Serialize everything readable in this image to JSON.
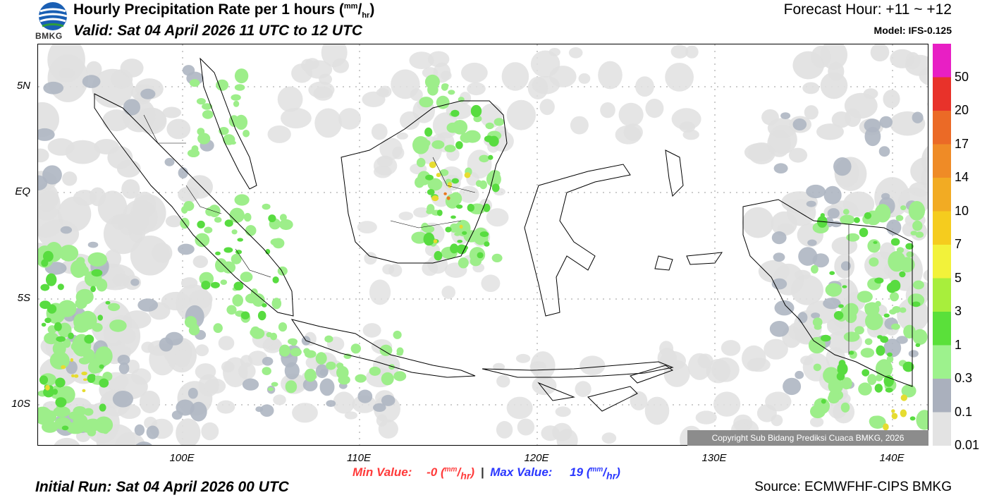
{
  "header": {
    "title": "Hourly Precipitation Rate per 1 hours (",
    "unit_top": "mm",
    "unit_bottom": "hr",
    "title_end": ")",
    "valid": "Valid: Sat 04 April 2026 11 UTC to 12 UTC",
    "forecast_hour": "Forecast Hour: +11 ~ +12",
    "model": "Model: IFS-0.125",
    "logo_text": "BMKG"
  },
  "map": {
    "lat_labels": [
      "5N",
      "EQ",
      "5S",
      "10S"
    ],
    "lon_labels": [
      "100E",
      "110E",
      "120E",
      "130E",
      "140E"
    ],
    "copyright": "Copyright Sub Bidang Prediksi Cuaca BMKG, 2026",
    "precip_colors": {
      "trace": "#e0e0e0",
      "light": "#aeb6c2",
      "moderate": "#9dee8a",
      "heavy": "#58dc40",
      "intense": "#e6dc30",
      "very_intense": "#e87a20"
    },
    "land_color": "#ffffff",
    "grid": true
  },
  "colorbar": {
    "labels": [
      "50",
      "20",
      "17",
      "14",
      "10",
      "7",
      "5",
      "3",
      "1",
      "0.3",
      "0.1",
      "0.01"
    ],
    "colors": [
      "#e81fc4",
      "#e8322a",
      "#eb6a26",
      "#ef8b26",
      "#f2ab23",
      "#f5cc1e",
      "#f2f23a",
      "#a8ee3c",
      "#5ae03a",
      "#9df28d",
      "#aab0bd",
      "#e3e3e3"
    ]
  },
  "footer": {
    "min_label": "Min Value:",
    "min_value": "-0",
    "max_label": "Max Value:",
    "max_value": "19",
    "unit_top": "mm",
    "unit_bottom": "hr",
    "separator": "|",
    "initial_run": "Initial Run: Sat 04 April 2026 00 UTC",
    "source": "Source: ECMWFHF-CIPS BMKG"
  }
}
